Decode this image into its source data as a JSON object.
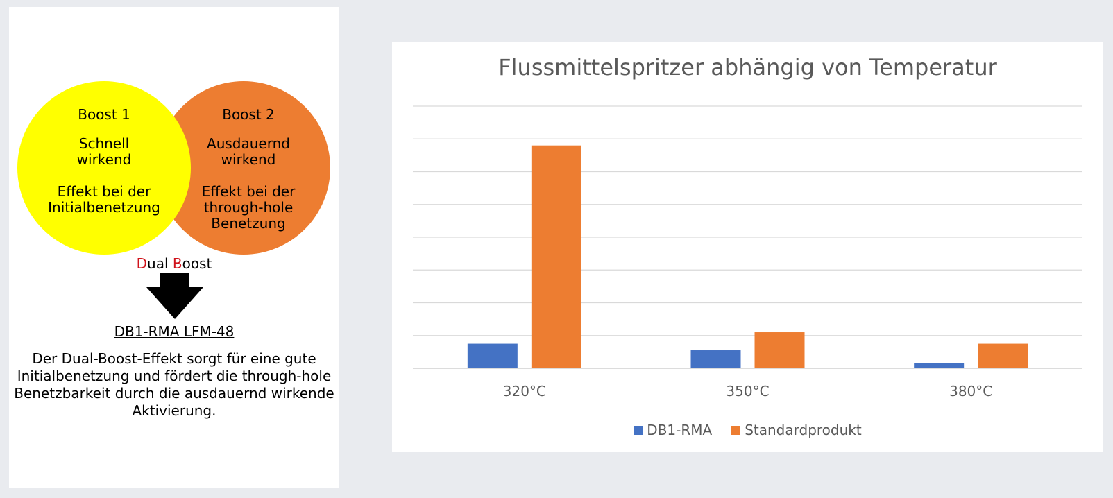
{
  "venn": {
    "boost1": {
      "title": "Boost 1",
      "line1": "Schnell",
      "line2": "wirkend",
      "line3": "Effekt bei der",
      "line4": "Initialbenetzung",
      "color": "#ffff00"
    },
    "boost2": {
      "title": "Boost 2",
      "line1": "Ausdauernd",
      "line2": "wirkend",
      "line3": "Effekt bei der",
      "line4": "through-hole",
      "line5": "Benetzung",
      "color": "#ed7d31"
    }
  },
  "dual_boost": {
    "d": "D",
    "ual": "ual ",
    "b": "B",
    "oost": "oost"
  },
  "product_name": "DB1-RMA LFM-48",
  "description": "Der Dual-Boost-Effekt sorgt für eine gute Initialbenetzung und fördert die through-hole Benetzbarkeit durch die ausdauernd wirkende Aktivierung.",
  "chart_data": {
    "type": "bar",
    "title": "Flussmittelspritzer abhängig von Temperatur",
    "categories": [
      "320°C",
      "350°C",
      "380°C"
    ],
    "series": [
      {
        "name": "DB1-RMA",
        "values": [
          0.75,
          0.55,
          0.15
        ],
        "color": "#4472c4"
      },
      {
        "name": "Standardprodukt",
        "values": [
          6.8,
          1.1,
          0.75
        ],
        "color": "#ed7d31"
      }
    ],
    "ylim": [
      0,
      8
    ],
    "gridlines": true,
    "y_tick_labels_shown": false,
    "legend_position": "bottom"
  }
}
